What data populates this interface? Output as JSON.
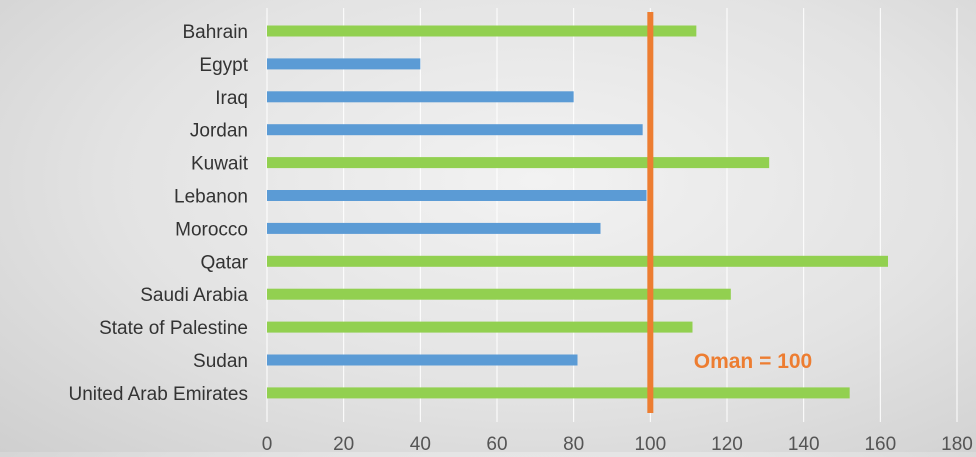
{
  "chart_data": {
    "type": "bar",
    "orientation": "horizontal",
    "categories": [
      "Bahrain",
      "Egypt",
      "Iraq",
      "Jordan",
      "Kuwait",
      "Lebanon",
      "Morocco",
      "Qatar",
      "Saudi Arabia",
      "State of Palestine",
      "Sudan",
      "United Arab Emirates"
    ],
    "values": [
      112,
      40,
      80,
      98,
      131,
      99,
      87,
      162,
      121,
      111,
      81,
      152
    ],
    "xlim": [
      0,
      180
    ],
    "xticks": [
      "0",
      "20",
      "40",
      "60",
      "80",
      "100",
      "120",
      "140",
      "160",
      "180"
    ],
    "grid": true,
    "reference_line": {
      "value": 100,
      "label": "Oman = 100",
      "color": "#ED7D31"
    },
    "colors": {
      "above": "#92D050",
      "below": "#5B9BD5",
      "grid": "#FFFFFF"
    }
  }
}
